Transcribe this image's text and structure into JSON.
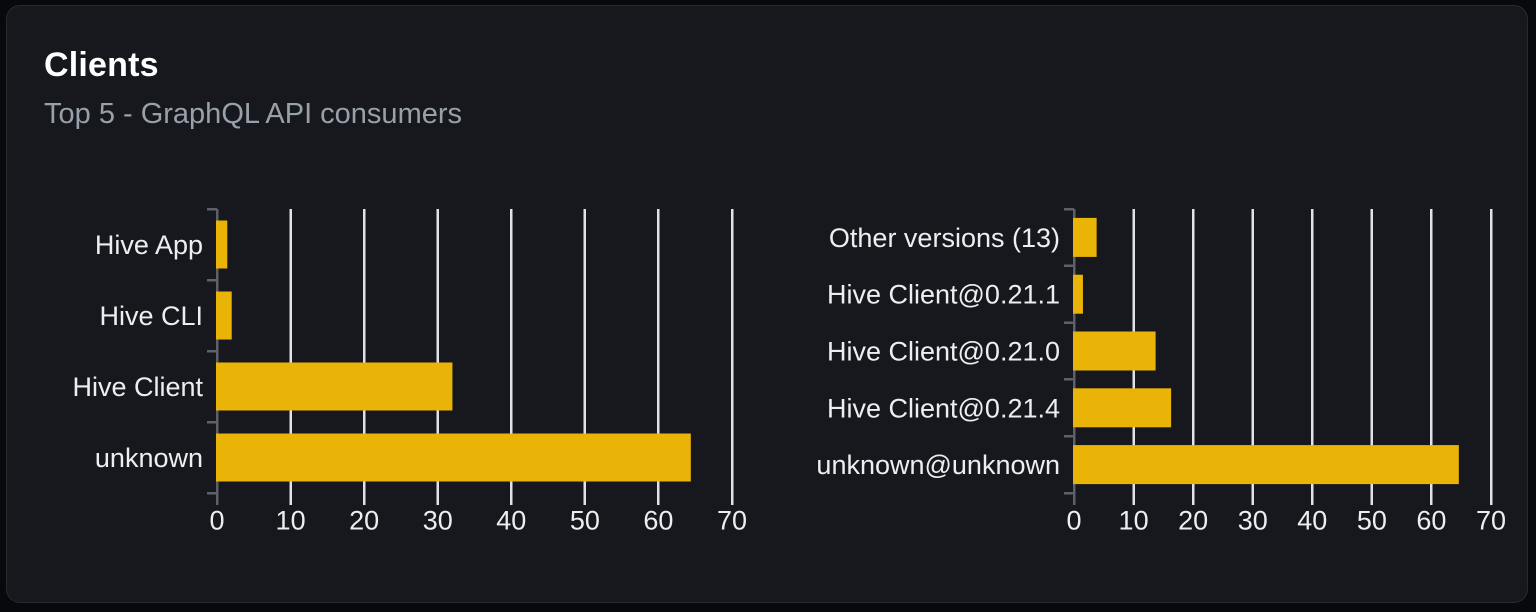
{
  "header": {
    "title": "Clients",
    "subtitle": "Top 5 - GraphQL API consumers"
  },
  "colors": {
    "bar": "#eab308",
    "grid": "#dfe2e8",
    "axis": "#5d6069",
    "category_label": "#eceef1",
    "tick_label": "#eceef1",
    "card_bg": "#16181e",
    "title": "#ffffff",
    "subtitle": "#98a0aa"
  },
  "chart_data": [
    {
      "type": "bar",
      "orientation": "horizontal",
      "title": "",
      "categories": [
        "Hive App",
        "Hive CLI",
        "Hive Client",
        "unknown"
      ],
      "values": [
        1.4,
        2,
        32,
        64.4
      ],
      "xticks": [
        0,
        10,
        20,
        30,
        40,
        50,
        60,
        70
      ],
      "xlim": [
        0,
        70
      ],
      "grid": true,
      "legend": "none"
    },
    {
      "type": "bar",
      "orientation": "horizontal",
      "title": "",
      "categories": [
        "Other versions (13)",
        "Hive Client@0.21.1",
        "Hive Client@0.21.0",
        "Hive Client@0.21.4",
        "unknown@unknown"
      ],
      "values": [
        3.8,
        1.5,
        13.7,
        16.3,
        64.6
      ],
      "xticks": [
        0,
        10,
        20,
        30,
        40,
        50,
        60,
        70
      ],
      "xlim": [
        0,
        70
      ],
      "grid": true,
      "legend": "none"
    }
  ]
}
